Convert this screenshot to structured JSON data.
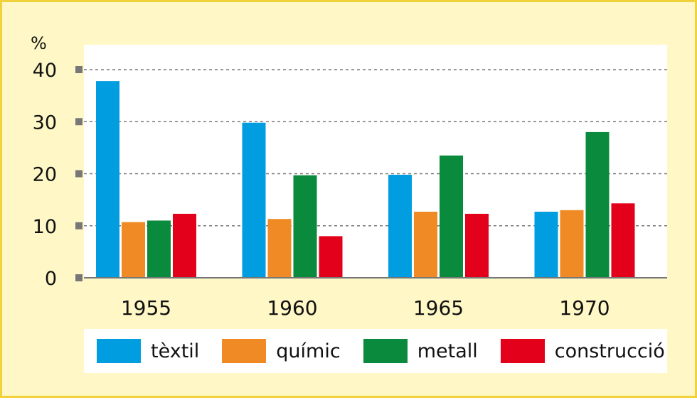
{
  "chart_data": {
    "type": "bar",
    "unit_label": "%",
    "categories": [
      "1955",
      "1960",
      "1965",
      "1970"
    ],
    "ylim": [
      0,
      40
    ],
    "yticks": [
      0,
      10,
      20,
      30,
      40
    ],
    "grid": true,
    "legend_position": "bottom",
    "series": [
      {
        "name": "tèxtil",
        "color": "#009ee0",
        "values": [
          37.8,
          29.8,
          19.8,
          12.7
        ]
      },
      {
        "name": "químic",
        "color": "#f08a24",
        "values": [
          10.7,
          11.3,
          12.7,
          13.0
        ]
      },
      {
        "name": "metall",
        "color": "#0a8a3c",
        "values": [
          11.0,
          19.7,
          23.5,
          28.0
        ]
      },
      {
        "name": "construcció",
        "color": "#e2001a",
        "values": [
          12.3,
          8.0,
          12.3,
          14.3
        ]
      }
    ]
  }
}
